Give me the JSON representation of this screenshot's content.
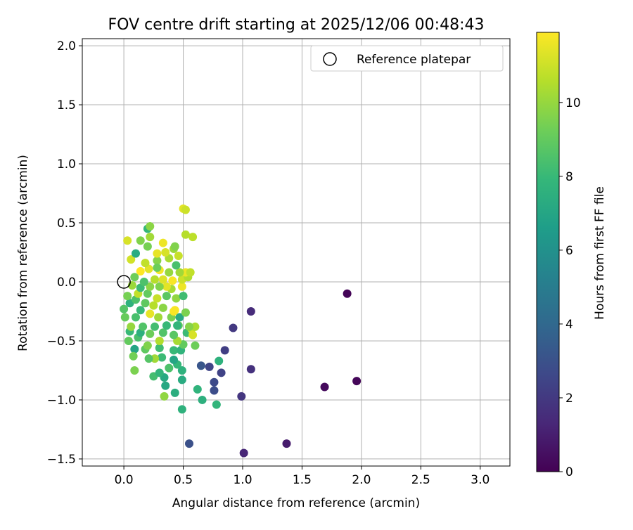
{
  "chart_data": {
    "type": "scatter",
    "title": "FOV centre drift starting at 2025/12/06 00:48:43",
    "xlabel": "Angular distance from reference (arcmin)",
    "ylabel": "Rotation from reference (arcmin)",
    "xlim": [
      -0.35,
      3.25
    ],
    "ylim": [
      -1.56,
      2.06
    ],
    "xticks": [
      0.0,
      0.5,
      1.0,
      1.5,
      2.0,
      2.5,
      3.0
    ],
    "xtick_labels": [
      "0.0",
      "0.5",
      "1.0",
      "1.5",
      "2.0",
      "2.5",
      "3.0"
    ],
    "yticks": [
      -1.5,
      -1.0,
      -0.5,
      0.0,
      0.5,
      1.0,
      1.5,
      2.0
    ],
    "ytick_labels": [
      "−1.5",
      "−1.0",
      "−0.5",
      "0.0",
      "0.5",
      "1.0",
      "1.5",
      "2.0"
    ],
    "grid": true,
    "legend": {
      "position": "upper right",
      "entries": [
        "Reference platepar"
      ]
    },
    "colorbar": {
      "label": "Hours from first FF file",
      "colormap": "viridis",
      "range": [
        0,
        11.9
      ],
      "ticks": [
        0,
        2,
        4,
        6,
        8,
        10
      ],
      "tick_labels": [
        "0",
        "2",
        "4",
        "6",
        "8",
        "10"
      ]
    },
    "reference_point": {
      "x": 0.0,
      "y": 0.0
    },
    "points": [
      {
        "x": 1.88,
        "y": -0.1,
        "c": 0.1
      },
      {
        "x": 1.96,
        "y": -0.84,
        "c": 0.2
      },
      {
        "x": 1.69,
        "y": -0.89,
        "c": 0.3
      },
      {
        "x": 1.37,
        "y": -1.37,
        "c": 0.9
      },
      {
        "x": 1.01,
        "y": -1.45,
        "c": 1.3
      },
      {
        "x": 1.07,
        "y": -0.25,
        "c": 1.5
      },
      {
        "x": 1.07,
        "y": -0.74,
        "c": 1.7
      },
      {
        "x": 0.99,
        "y": -0.97,
        "c": 1.9
      },
      {
        "x": 0.92,
        "y": -0.39,
        "c": 2.0
      },
      {
        "x": 0.85,
        "y": -0.58,
        "c": 2.2
      },
      {
        "x": 0.82,
        "y": -0.77,
        "c": 2.4
      },
      {
        "x": 0.72,
        "y": -0.72,
        "c": 2.5
      },
      {
        "x": 0.76,
        "y": -0.85,
        "c": 2.7
      },
      {
        "x": 0.76,
        "y": -0.92,
        "c": 2.8
      },
      {
        "x": 0.55,
        "y": -1.37,
        "c": 3.0
      },
      {
        "x": 0.65,
        "y": -0.71,
        "c": 3.2
      },
      {
        "x": 0.8,
        "y": -0.67,
        "c": 7.6
      },
      {
        "x": 0.78,
        "y": -1.04,
        "c": 7.8
      },
      {
        "x": 0.66,
        "y": -1.0,
        "c": 7.5
      },
      {
        "x": 0.62,
        "y": -0.91,
        "c": 7.7
      },
      {
        "x": 0.49,
        "y": -1.08,
        "c": 7.6
      },
      {
        "x": 0.43,
        "y": -0.94,
        "c": 7.4
      },
      {
        "x": 0.35,
        "y": -0.88,
        "c": 7.1
      },
      {
        "x": 0.34,
        "y": -0.97,
        "c": 9.9
      },
      {
        "x": 0.34,
        "y": -0.81,
        "c": 7.2
      },
      {
        "x": 0.25,
        "y": -0.8,
        "c": 8.3
      },
      {
        "x": 0.3,
        "y": -0.77,
        "c": 7.8
      },
      {
        "x": 0.38,
        "y": -0.73,
        "c": 8.5
      },
      {
        "x": 0.49,
        "y": -0.83,
        "c": 7.3
      },
      {
        "x": 0.49,
        "y": -0.75,
        "c": 7.6
      },
      {
        "x": 0.45,
        "y": -0.7,
        "c": 7.9
      },
      {
        "x": 0.42,
        "y": -0.66,
        "c": 7.0
      },
      {
        "x": 0.32,
        "y": -0.64,
        "c": 8.1
      },
      {
        "x": 0.26,
        "y": -0.65,
        "c": 10.2
      },
      {
        "x": 0.21,
        "y": -0.65,
        "c": 8.7
      },
      {
        "x": 0.18,
        "y": -0.57,
        "c": 8.9
      },
      {
        "x": 0.09,
        "y": -0.57,
        "c": 7.0
      },
      {
        "x": 0.08,
        "y": -0.63,
        "c": 9.3
      },
      {
        "x": 0.09,
        "y": -0.75,
        "c": 9.5
      },
      {
        "x": 0.04,
        "y": -0.5,
        "c": 9.0
      },
      {
        "x": 0.3,
        "y": -0.56,
        "c": 8.2
      },
      {
        "x": 0.42,
        "y": -0.58,
        "c": 8.0
      },
      {
        "x": 0.48,
        "y": -0.58,
        "c": 7.7
      },
      {
        "x": 0.5,
        "y": -0.53,
        "c": 9.0
      },
      {
        "x": 0.6,
        "y": -0.54,
        "c": 9.2
      },
      {
        "x": 0.45,
        "y": -0.5,
        "c": 10.3
      },
      {
        "x": 0.3,
        "y": -0.5,
        "c": 10.5
      },
      {
        "x": 0.2,
        "y": -0.54,
        "c": 9.6
      },
      {
        "x": 0.12,
        "y": -0.47,
        "c": 8.4
      },
      {
        "x": 0.05,
        "y": -0.42,
        "c": 8.0
      },
      {
        "x": 0.14,
        "y": -0.43,
        "c": 7.5
      },
      {
        "x": 0.22,
        "y": -0.44,
        "c": 9.2
      },
      {
        "x": 0.33,
        "y": -0.43,
        "c": 8.6
      },
      {
        "x": 0.42,
        "y": -0.45,
        "c": 8.8
      },
      {
        "x": 0.53,
        "y": -0.43,
        "c": 8.1
      },
      {
        "x": 0.57,
        "y": -0.4,
        "c": 11.0
      },
      {
        "x": 0.58,
        "y": -0.45,
        "c": 11.2
      },
      {
        "x": 0.6,
        "y": -0.38,
        "c": 10.4
      },
      {
        "x": 0.55,
        "y": -0.38,
        "c": 9.7
      },
      {
        "x": 0.46,
        "y": -0.37,
        "c": 9.1
      },
      {
        "x": 0.36,
        "y": -0.37,
        "c": 8.0
      },
      {
        "x": 0.26,
        "y": -0.38,
        "c": 8.3
      },
      {
        "x": 0.16,
        "y": -0.38,
        "c": 8.6
      },
      {
        "x": 0.06,
        "y": -0.38,
        "c": 10.0
      },
      {
        "x": 0.1,
        "y": -0.3,
        "c": 8.4
      },
      {
        "x": 0.01,
        "y": -0.3,
        "c": 9.1
      },
      {
        "x": 0.0,
        "y": -0.23,
        "c": 8.7
      },
      {
        "x": 0.05,
        "y": -0.18,
        "c": 7.6
      },
      {
        "x": 0.14,
        "y": -0.24,
        "c": 8.0
      },
      {
        "x": 0.22,
        "y": -0.27,
        "c": 11.5
      },
      {
        "x": 0.29,
        "y": -0.3,
        "c": 10.2
      },
      {
        "x": 0.4,
        "y": -0.3,
        "c": 9.5
      },
      {
        "x": 0.47,
        "y": -0.3,
        "c": 7.2
      },
      {
        "x": 0.52,
        "y": -0.26,
        "c": 9.5
      },
      {
        "x": 0.43,
        "y": -0.24,
        "c": 11.8
      },
      {
        "x": 0.33,
        "y": -0.22,
        "c": 9.8
      },
      {
        "x": 0.25,
        "y": -0.2,
        "c": 10.6
      },
      {
        "x": 0.18,
        "y": -0.18,
        "c": 8.9
      },
      {
        "x": 0.1,
        "y": -0.15,
        "c": 8.5
      },
      {
        "x": 0.03,
        "y": -0.12,
        "c": 9.4
      },
      {
        "x": 0.12,
        "y": -0.1,
        "c": 10.8
      },
      {
        "x": 0.2,
        "y": -0.1,
        "c": 9.0
      },
      {
        "x": 0.28,
        "y": -0.14,
        "c": 10.9
      },
      {
        "x": 0.36,
        "y": -0.12,
        "c": 8.8
      },
      {
        "x": 0.44,
        "y": -0.14,
        "c": 9.9
      },
      {
        "x": 0.5,
        "y": -0.12,
        "c": 8.2
      },
      {
        "x": 0.49,
        "y": -0.04,
        "c": 11.6
      },
      {
        "x": 0.4,
        "y": -0.06,
        "c": 10.3
      },
      {
        "x": 0.36,
        "y": -0.04,
        "c": 11.4
      },
      {
        "x": 0.3,
        "y": -0.04,
        "c": 9.6
      },
      {
        "x": 0.22,
        "y": -0.04,
        "c": 9.8
      },
      {
        "x": 0.14,
        "y": -0.05,
        "c": 8.1
      },
      {
        "x": 0.07,
        "y": -0.03,
        "c": 10.1
      },
      {
        "x": 0.09,
        "y": 0.04,
        "c": 9.2
      },
      {
        "x": 0.17,
        "y": 0.0,
        "c": 8.5
      },
      {
        "x": 0.26,
        "y": 0.02,
        "c": 10.6
      },
      {
        "x": 0.33,
        "y": 0.02,
        "c": 11.3
      },
      {
        "x": 0.41,
        "y": 0.01,
        "c": 11.8
      },
      {
        "x": 0.49,
        "y": 0.02,
        "c": 11.0
      },
      {
        "x": 0.54,
        "y": 0.04,
        "c": 10.5
      },
      {
        "x": 0.52,
        "y": 0.08,
        "c": 11.6
      },
      {
        "x": 0.56,
        "y": 0.08,
        "c": 10.8
      },
      {
        "x": 0.47,
        "y": 0.08,
        "c": 10.2
      },
      {
        "x": 0.38,
        "y": 0.08,
        "c": 10.0
      },
      {
        "x": 0.3,
        "y": 0.1,
        "c": 11.7
      },
      {
        "x": 0.21,
        "y": 0.11,
        "c": 11.4
      },
      {
        "x": 0.14,
        "y": 0.09,
        "c": 11.9
      },
      {
        "x": 0.18,
        "y": 0.16,
        "c": 10.8
      },
      {
        "x": 0.28,
        "y": 0.18,
        "c": 9.7
      },
      {
        "x": 0.38,
        "y": 0.2,
        "c": 10.4
      },
      {
        "x": 0.46,
        "y": 0.22,
        "c": 10.9
      },
      {
        "x": 0.42,
        "y": 0.28,
        "c": 10.1
      },
      {
        "x": 0.35,
        "y": 0.25,
        "c": 11.2
      },
      {
        "x": 0.28,
        "y": 0.24,
        "c": 11.5
      },
      {
        "x": 0.2,
        "y": 0.3,
        "c": 9.4
      },
      {
        "x": 0.14,
        "y": 0.35,
        "c": 9.6
      },
      {
        "x": 0.06,
        "y": 0.19,
        "c": 11.1
      },
      {
        "x": 0.1,
        "y": 0.24,
        "c": 7.3
      },
      {
        "x": 0.03,
        "y": 0.35,
        "c": 11.2
      },
      {
        "x": 0.2,
        "y": 0.45,
        "c": 7.9
      },
      {
        "x": 0.22,
        "y": 0.47,
        "c": 9.8
      },
      {
        "x": 0.22,
        "y": 0.38,
        "c": 10.2
      },
      {
        "x": 0.33,
        "y": 0.33,
        "c": 11.6
      },
      {
        "x": 0.52,
        "y": 0.4,
        "c": 10.6
      },
      {
        "x": 0.58,
        "y": 0.38,
        "c": 10.7
      },
      {
        "x": 0.5,
        "y": 0.62,
        "c": 11.4
      },
      {
        "x": 0.52,
        "y": 0.61,
        "c": 11.0
      },
      {
        "x": 0.43,
        "y": 0.3,
        "c": 9.6
      },
      {
        "x": 0.44,
        "y": 0.14,
        "c": 8.4
      },
      {
        "x": 0.28,
        "y": 0.12,
        "c": 9.2
      },
      {
        "x": 0.42,
        "y": -0.25,
        "c": 11.8
      },
      {
        "x": 0.45,
        "y": -0.37,
        "c": 7.8
      }
    ]
  }
}
